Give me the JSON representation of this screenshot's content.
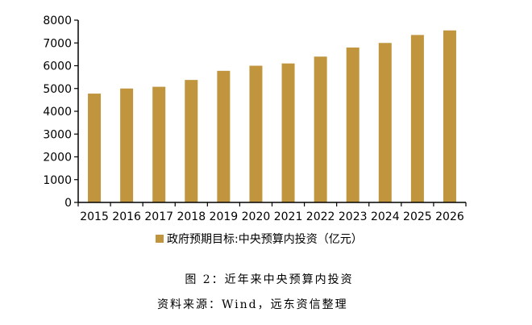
{
  "chart_data": {
    "type": "bar",
    "title": "图 2：近年来中央预算内投资",
    "source": "资料来源：Wind，远东资信整理",
    "categories": [
      "2015",
      "2016",
      "2017",
      "2018",
      "2019",
      "2020",
      "2021",
      "2022",
      "2023",
      "2024",
      "2025",
      "2026"
    ],
    "series": [
      {
        "name": "政府预期目标:中央预算内投资（亿元）",
        "color": "#C0953D",
        "values": [
          4776,
          5000,
          5076,
          5376,
          5776,
          6000,
          6100,
          6400,
          6800,
          7000,
          7350,
          7550
        ]
      }
    ],
    "xlabel": "",
    "ylabel": "",
    "ylim": [
      0,
      8000
    ],
    "yticks": [
      0,
      1000,
      2000,
      3000,
      4000,
      5000,
      6000,
      7000,
      8000
    ],
    "grid": false,
    "legend_position": "bottom"
  },
  "legend": {
    "label": "政府预期目标:中央预算内投资（亿元）"
  },
  "caption": {
    "title": "图 2：近年来中央预算内投资",
    "source": "资料来源：Wind，远东资信整理"
  }
}
